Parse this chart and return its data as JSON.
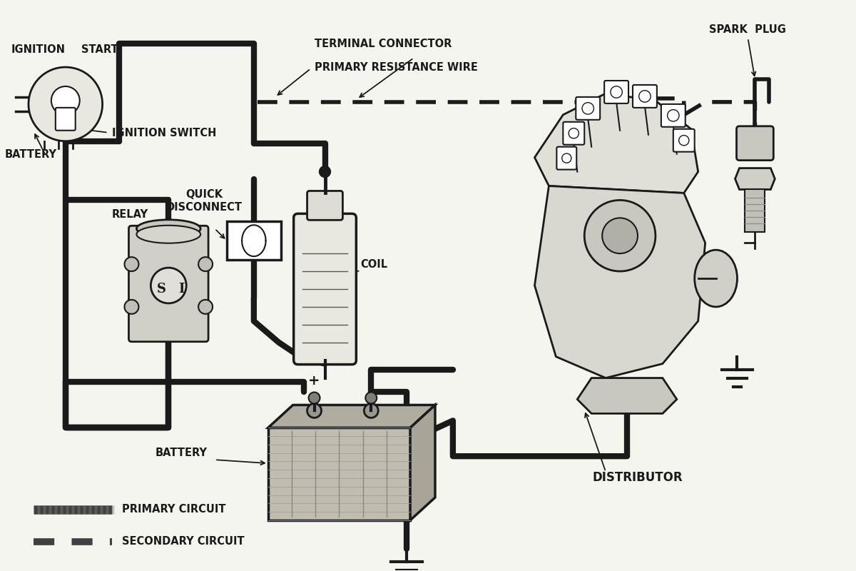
{
  "bg_color": "#f5f5f0",
  "line_color": "#1a1a1a",
  "gray_color": "#555555",
  "light_gray": "#aaaaaa",
  "mid_gray": "#888888",
  "lw_primary": 6,
  "lw_secondary": 4,
  "lw_detail": 2,
  "font_size_label": 10.5,
  "font_size_small": 9,
  "labels": {
    "ignition": "IGNITION",
    "start": "START",
    "ignition_switch": "IGNITION SWITCH",
    "terminal_connector": "TERMINAL CONNECTOR",
    "primary_resistance_wire": "PRIMARY RESISTANCE WIRE",
    "spark_plug": "SPARK  PLUG",
    "quick_disconnect": "QUICK\nDISCONNECT",
    "coil": "COIL",
    "relay": "RELAY",
    "battery": "BATTERY",
    "distributor": "DISTRIBUTOR",
    "primary_circuit": "PRIMARY CIRCUIT",
    "secondary_circuit": "SECONDARY CIRCUIT"
  }
}
